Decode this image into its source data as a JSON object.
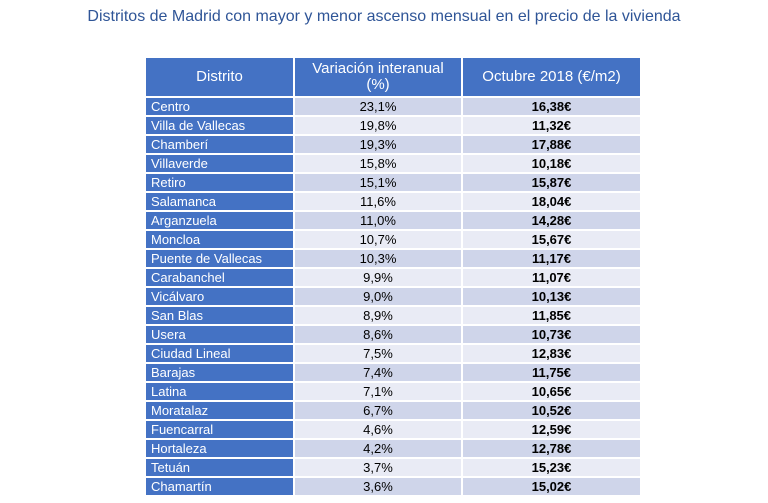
{
  "title": "Distritos de Madrid con mayor y menor ascenso mensual en el precio de la vivienda",
  "colors": {
    "header": "#4472c4",
    "row_dark": "#cfd5ea",
    "row_light": "#e9ebf5",
    "title": "#2f5597"
  },
  "chart_data": {
    "type": "table",
    "title": "Distritos de Madrid con mayor y menor ascenso mensual en el precio de la vivienda",
    "columns": [
      "Distrito",
      "Variación interanual (%)",
      "Octubre 2018 (€/m2)"
    ],
    "rows": [
      [
        "Centro",
        "23,1%",
        "16,38€"
      ],
      [
        "Villa de Vallecas",
        "19,8%",
        "11,32€"
      ],
      [
        "Chamberí",
        "19,3%",
        "17,88€"
      ],
      [
        "Villaverde",
        "15,8%",
        "10,18€"
      ],
      [
        "Retiro",
        "15,1%",
        "15,87€"
      ],
      [
        "Salamanca",
        "11,6%",
        "18,04€"
      ],
      [
        "Arganzuela",
        "11,0%",
        "14,28€"
      ],
      [
        "Moncloa",
        "10,7%",
        "15,67€"
      ],
      [
        "Puente de Vallecas",
        "10,3%",
        "11,17€"
      ],
      [
        "Carabanchel",
        "9,9%",
        "11,07€"
      ],
      [
        "Vicálvaro",
        "9,0%",
        "10,13€"
      ],
      [
        "San Blas",
        "8,9%",
        "11,85€"
      ],
      [
        "Usera",
        "8,6%",
        "10,73€"
      ],
      [
        "Ciudad Lineal",
        "7,5%",
        "12,83€"
      ],
      [
        "Barajas",
        "7,4%",
        "11,75€"
      ],
      [
        "Latina",
        "7,1%",
        "10,65€"
      ],
      [
        "Moratalaz",
        "6,7%",
        "10,52€"
      ],
      [
        "Fuencarral",
        "4,6%",
        "12,59€"
      ],
      [
        "Hortaleza",
        "4,2%",
        "12,78€"
      ],
      [
        "Tetuán",
        "3,7%",
        "15,23€"
      ],
      [
        "Chamartín",
        "3,6%",
        "15,02€"
      ]
    ]
  }
}
